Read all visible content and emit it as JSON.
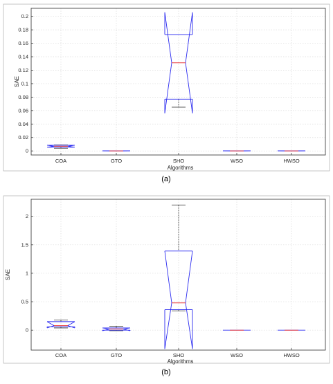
{
  "chart_data": [
    {
      "type": "box",
      "notched": true,
      "panel_label": "(a)",
      "xlabel": "Algorithms",
      "ylabel": "SAE",
      "ylim": [
        -0.006,
        0.212
      ],
      "yticks": [
        0,
        0.02,
        0.04,
        0.06,
        0.08,
        0.1,
        0.12,
        0.14,
        0.16,
        0.18,
        0.2
      ],
      "ytick_labels": [
        "0",
        "0.02",
        "0.04",
        "0.06",
        "0.08",
        "0.1",
        "0.12",
        "0.14",
        "0.16",
        "0.18",
        "0.2"
      ],
      "grid": true,
      "categories": [
        "COA",
        "GTO",
        "SHO",
        "WSO",
        "HWSO"
      ],
      "boxes": [
        {
          "min": 0.004,
          "q1": 0.0055,
          "median": 0.007,
          "q3": 0.0085,
          "max": 0.009,
          "notch_lo": 0.0055,
          "notch_hi": 0.0085
        },
        {
          "min": 0.0,
          "q1": 0.0,
          "median": 0.0001,
          "q3": 0.0002,
          "max": 0.0003,
          "notch_lo": 0.0,
          "notch_hi": 0.0002
        },
        {
          "min": 0.065,
          "q1": 0.077,
          "median": 0.131,
          "q3": 0.173,
          "max": 0.173,
          "notch_lo": 0.056,
          "notch_hi": 0.206
        },
        {
          "min": 0.0,
          "q1": 0.0,
          "median": 0.0001,
          "q3": 0.0002,
          "max": 0.0003,
          "notch_lo": 0.0,
          "notch_hi": 0.0002
        },
        {
          "min": 0.0,
          "q1": 0.0,
          "median": 0.0001,
          "q3": 0.0002,
          "max": 0.0003,
          "notch_lo": 0.0,
          "notch_hi": 0.0002
        }
      ]
    },
    {
      "type": "box",
      "notched": true,
      "panel_label": "(b)",
      "xlabel": "Algorithms",
      "ylabel": "SAE",
      "ylim": [
        -0.35,
        2.3
      ],
      "yticks": [
        0,
        0.5,
        1,
        1.5,
        2
      ],
      "ytick_labels": [
        "0",
        "0.5",
        "1",
        "1.5",
        "2"
      ],
      "grid": true,
      "categories": [
        "COA",
        "GTO",
        "SHO",
        "WSO",
        "HWSO"
      ],
      "boxes": [
        {
          "min": 0.04,
          "q1": 0.06,
          "median": 0.08,
          "q3": 0.15,
          "max": 0.18,
          "notch_lo": 0.04,
          "notch_hi": 0.15
        },
        {
          "min": -0.01,
          "q1": 0.0,
          "median": 0.02,
          "q3": 0.04,
          "max": 0.07,
          "notch_lo": -0.01,
          "notch_hi": 0.04
        },
        {
          "min": 0.34,
          "q1": 0.36,
          "median": 0.48,
          "q3": 1.39,
          "max": 2.2,
          "notch_lo": -0.33,
          "notch_hi": 1.39
        },
        {
          "min": 0.0,
          "q1": 0.0,
          "median": 0.0,
          "q3": 0.0,
          "max": 0.0,
          "notch_lo": 0.0,
          "notch_hi": 0.0
        },
        {
          "min": 0.0,
          "q1": 0.0,
          "median": 0.0,
          "q3": 0.0,
          "max": 0.0,
          "notch_lo": 0.0,
          "notch_hi": 0.0
        }
      ]
    }
  ],
  "colors": {
    "box": "#2b2bf0",
    "median": "#e8383d",
    "whisker": "#333333",
    "grid": "#dcdcdc",
    "axis": "#444444"
  }
}
